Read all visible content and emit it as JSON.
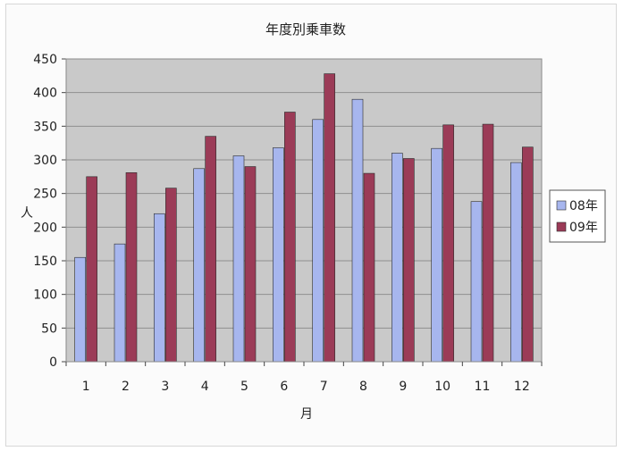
{
  "chart_data": {
    "type": "bar",
    "title": "年度別乗車数",
    "xlabel": "月",
    "ylabel": "人",
    "categories": [
      "1",
      "2",
      "3",
      "4",
      "5",
      "6",
      "7",
      "8",
      "9",
      "10",
      "11",
      "12"
    ],
    "series": [
      {
        "name": "08年",
        "color": "#a7b6ee",
        "values": [
          155,
          175,
          220,
          287,
          306,
          318,
          360,
          390,
          310,
          317,
          238,
          296
        ]
      },
      {
        "name": "09年",
        "color": "#9b3b57",
        "values": [
          275,
          281,
          258,
          335,
          290,
          371,
          428,
          280,
          302,
          352,
          353,
          319
        ]
      }
    ],
    "ylim": [
      0,
      450
    ],
    "yticks": [
      0,
      50,
      100,
      150,
      200,
      250,
      300,
      350,
      400,
      450
    ],
    "grid": true,
    "legend_position": "right",
    "plot_background": "#c9c9c9"
  }
}
